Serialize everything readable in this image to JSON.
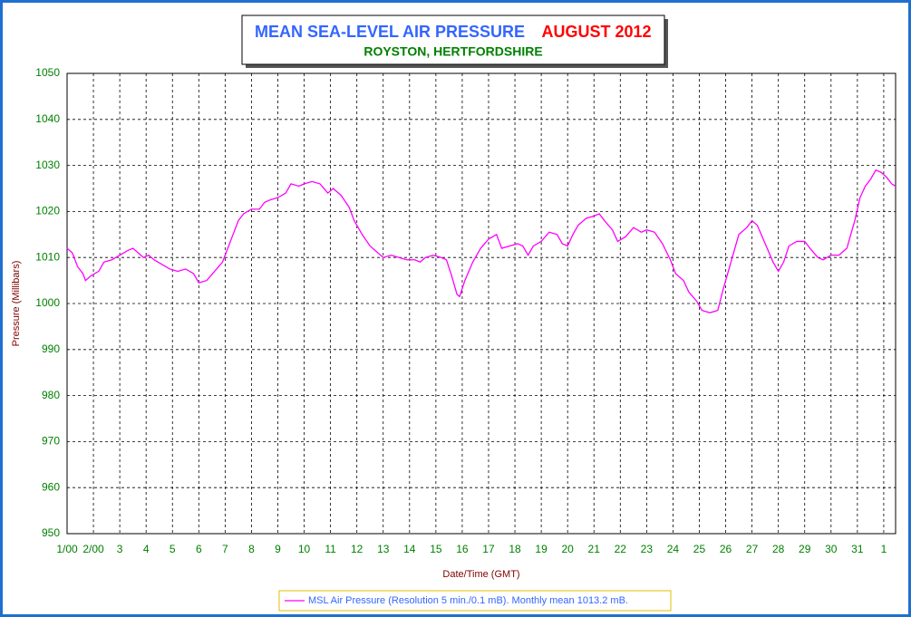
{
  "chart_data": {
    "type": "line",
    "title": "MEAN SEA-LEVEL AIR PRESSURE",
    "title_period": "AUGUST 2012",
    "subtitle": "ROYSTON, HERTFORDSHIRE",
    "y_label": "Pressure (Millibars)",
    "x_label": "Date/Time (GMT)",
    "grid": true,
    "xlim": [
      0,
      31.45
    ],
    "ylim": [
      950,
      1050
    ],
    "yticks": [
      950,
      960,
      970,
      980,
      990,
      1000,
      1010,
      1020,
      1030,
      1040,
      1050
    ],
    "xticks": [
      {
        "value": 0,
        "label": "1/00"
      },
      {
        "value": 1,
        "label": "2/00"
      },
      {
        "value": 2,
        "label": "3"
      },
      {
        "value": 3,
        "label": "4"
      },
      {
        "value": 4,
        "label": "5"
      },
      {
        "value": 5,
        "label": "6"
      },
      {
        "value": 6,
        "label": "7"
      },
      {
        "value": 7,
        "label": "8"
      },
      {
        "value": 8,
        "label": "9"
      },
      {
        "value": 9,
        "label": "10"
      },
      {
        "value": 10,
        "label": "11"
      },
      {
        "value": 11,
        "label": "12"
      },
      {
        "value": 12,
        "label": "13"
      },
      {
        "value": 13,
        "label": "14"
      },
      {
        "value": 14,
        "label": "15"
      },
      {
        "value": 15,
        "label": "16"
      },
      {
        "value": 16,
        "label": "17"
      },
      {
        "value": 17,
        "label": "18"
      },
      {
        "value": 18,
        "label": "19"
      },
      {
        "value": 19,
        "label": "20"
      },
      {
        "value": 20,
        "label": "21"
      },
      {
        "value": 21,
        "label": "22"
      },
      {
        "value": 22,
        "label": "23"
      },
      {
        "value": 23,
        "label": "24"
      },
      {
        "value": 24,
        "label": "25"
      },
      {
        "value": 25,
        "label": "26"
      },
      {
        "value": 26,
        "label": "27"
      },
      {
        "value": 27,
        "label": "28"
      },
      {
        "value": 28,
        "label": "29"
      },
      {
        "value": 29,
        "label": "30"
      },
      {
        "value": 30,
        "label": "31"
      },
      {
        "value": 31,
        "label": "1"
      }
    ],
    "x": [
      0,
      0.2,
      0.4,
      0.6,
      0.7,
      0.9,
      1.2,
      1.4,
      1.7,
      2.0,
      2.3,
      2.5,
      2.7,
      2.9,
      3.1,
      3.3,
      3.6,
      3.9,
      4.2,
      4.5,
      4.8,
      5.0,
      5.3,
      5.6,
      5.9,
      6.1,
      6.3,
      6.5,
      6.7,
      7.0,
      7.3,
      7.5,
      7.7,
      8.0,
      8.3,
      8.5,
      8.8,
      9.0,
      9.3,
      9.6,
      9.9,
      10.1,
      10.4,
      10.7,
      10.9,
      11.2,
      11.5,
      11.8,
      12.0,
      12.3,
      12.6,
      12.9,
      13.2,
      13.4,
      13.6,
      13.9,
      14.2,
      14.4,
      14.6,
      14.8,
      14.9,
      15.1,
      15.4,
      15.7,
      16.0,
      16.3,
      16.5,
      16.8,
      17.1,
      17.3,
      17.5,
      17.7,
      18.0,
      18.3,
      18.6,
      18.8,
      19.0,
      19.2,
      19.4,
      19.7,
      20.0,
      20.2,
      20.4,
      20.7,
      20.9,
      21.2,
      21.5,
      21.8,
      22.0,
      22.3,
      22.6,
      22.9,
      23.1,
      23.4,
      23.6,
      23.9,
      24.1,
      24.4,
      24.7,
      24.9,
      25.2,
      25.5,
      25.8,
      26.0,
      26.2,
      26.5,
      26.8,
      27.0,
      27.2,
      27.4,
      27.7,
      28.0,
      28.2,
      28.5,
      28.7,
      29.0,
      29.3,
      29.6,
      29.9,
      30.1,
      30.3,
      30.5,
      30.7,
      30.9,
      31.1,
      31.3,
      31.45
    ],
    "series": [
      {
        "name": "MSL Air Pressure (Resolution 5 min./0.1 mB). Monthly mean 1013.2 mB.",
        "color": "#ff00ff",
        "values": [
          1012,
          1011,
          1008,
          1006.5,
          1005,
          1006,
          1007,
          1009,
          1009.5,
          1010.5,
          1011.5,
          1012,
          1011,
          1010,
          1010.5,
          1009.5,
          1008.5,
          1007.5,
          1007,
          1007.5,
          1006.5,
          1004.5,
          1005,
          1007,
          1009,
          1012,
          1015,
          1018,
          1019.5,
          1020.5,
          1020.5,
          1022,
          1022.5,
          1023,
          1024,
          1026,
          1025.5,
          1026,
          1026.5,
          1026,
          1024,
          1025,
          1023.5,
          1021,
          1018,
          1015,
          1012.5,
          1011,
          1010,
          1010.5,
          1010,
          1009.5,
          1009.5,
          1009,
          1010,
          1010.5,
          1010,
          1009.5,
          1006,
          1002,
          1001.5,
          1005,
          1009,
          1012,
          1014,
          1015,
          1012,
          1012.5,
          1013,
          1012.5,
          1010.5,
          1012.5,
          1013.5,
          1015.5,
          1015,
          1013,
          1012.5,
          1015,
          1017,
          1018.5,
          1019,
          1019.5,
          1018,
          1016,
          1013.5,
          1014.5,
          1016.5,
          1015.5,
          1016,
          1015.5,
          1013,
          1009.5,
          1006.5,
          1005,
          1002.5,
          1000.5,
          998.5,
          998,
          998.5,
          1003,
          1009,
          1015,
          1016.5,
          1018,
          1017,
          1013,
          1009,
          1007,
          1009,
          1012.5,
          1013.5,
          1013.5,
          1012,
          1010,
          1009.5,
          1010.5,
          1010.5,
          1012,
          1018,
          1023,
          1025.5,
          1027,
          1029,
          1028.5,
          1027.5,
          1026,
          1025.5
        ]
      }
    ]
  }
}
